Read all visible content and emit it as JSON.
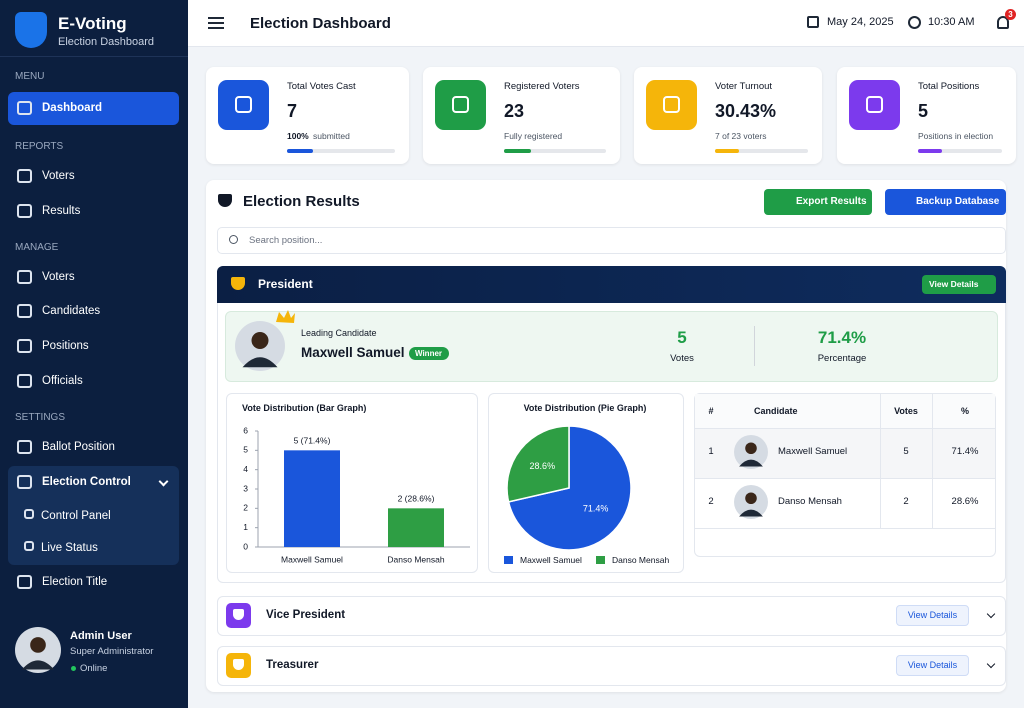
{
  "sidebar": {
    "brand": "E-Voting",
    "subtitle": "Election Dashboard",
    "sections": [
      {
        "title": "MENU",
        "items": [
          "Dashboard"
        ]
      },
      {
        "title": "REPORTS",
        "items": [
          "Voters",
          "Results"
        ]
      },
      {
        "title": "MANAGE",
        "items": [
          "Voters",
          "Candidates",
          "Positions",
          "Officials"
        ]
      },
      {
        "title": "SETTINGS",
        "items": [
          "Ballot Position",
          "Election Control",
          "Control Panel",
          "Live Status",
          "Election Title"
        ]
      }
    ],
    "user": {
      "name": "Admin User",
      "role": "Super Administrator",
      "status": "Online"
    }
  },
  "header": {
    "title": "Election Dashboard",
    "date": "May 24, 2025",
    "time": "10:30 AM",
    "notifications": "3"
  },
  "stats": [
    {
      "label": "Total Votes Cast",
      "value": "7",
      "note_strong": "100%",
      "note": "submitted",
      "color": "#1a56db"
    },
    {
      "label": "Registered Voters",
      "value": "23",
      "note": "Fully registered",
      "color": "#1f9d47"
    },
    {
      "label": "Voter Turnout",
      "value": "30.43%",
      "note": "7 of 23 voters",
      "color": "#f5b50a"
    },
    {
      "label": "Total Positions",
      "value": "5",
      "note": "Positions in election",
      "color": "#7c3aed"
    }
  ],
  "results": {
    "title": "Election Results",
    "export": "Export Results",
    "backup": "Backup Database",
    "search": "Search position...",
    "president": {
      "title": "President",
      "view": "View Details",
      "leading": {
        "label": "Leading Candidate",
        "name": "Maxwell Samuel",
        "badge": "Winner",
        "votes": "5",
        "votes_label": "Votes",
        "percentage": "71.4%",
        "percentage_label": "Percentage"
      },
      "bar_chart": {
        "type": "bar",
        "title": "Vote Distribution (Bar Graph)",
        "categories": [
          "Maxwell Samuel",
          "Danso Mensah"
        ],
        "values": [
          5,
          2
        ],
        "value_labels": [
          "5 (71.4%)",
          "2 (28.6%)"
        ],
        "colors": [
          "#1a56db",
          "#2e9e44"
        ],
        "ylim": [
          0,
          6
        ],
        "yticks": [
          0,
          1,
          2,
          3,
          4,
          5,
          6
        ]
      },
      "pie_chart": {
        "type": "pie",
        "title": "Vote Distribution (Pie Graph)",
        "categories": [
          "Maxwell Samuel",
          "Danso Mensah"
        ],
        "values": [
          71.4,
          28.6
        ],
        "value_labels": [
          "71.4%",
          "28.6%"
        ],
        "colors": [
          "#1a56db",
          "#2e9e44"
        ]
      },
      "table": {
        "headers": [
          "#",
          "Candidate",
          "Votes",
          "%"
        ],
        "rows": [
          [
            "1",
            "Maxwell Samuel",
            "5",
            "71.4%"
          ],
          [
            "2",
            "Danso Mensah",
            "2",
            "28.6%"
          ]
        ]
      }
    },
    "others": [
      {
        "title": "Vice President",
        "view": "View Details",
        "color": "#7c3aed"
      },
      {
        "title": "Treasurer",
        "view": "View Details",
        "color": "#f5b50a"
      }
    ]
  }
}
